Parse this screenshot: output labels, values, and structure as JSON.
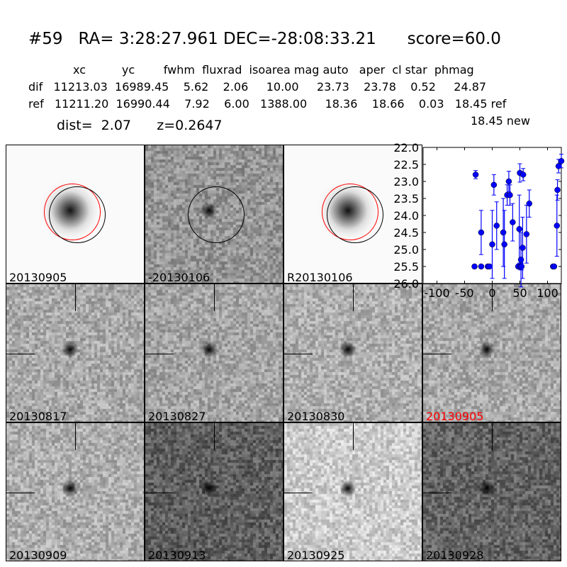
{
  "title": "#59   RA= 3:28:27.961 DEC=-28:08:33.21      score=60.0",
  "table": {
    "header": "xc          yc        fwhm  fluxrad  isoarea mag auto   aper  cl star  phmag",
    "dif": "dif   11213.03  16989.45    5.62    2.06     10.00     23.73    23.78    0.52     24.87",
    "ref": "ref   11211.20  16990.44    7.92    6.00   1388.00     18.36    18.66    0.03   18.45 ref",
    "new": "18.45 new",
    "dist": "dist=  2.07      z=0.2647"
  },
  "stamps": [
    {
      "label": "20130905",
      "kind": "galaxy",
      "circles": true
    },
    {
      "label": "-20130106",
      "kind": "diff",
      "circles": "black"
    },
    {
      "label": "R20130106",
      "kind": "galaxy",
      "circles": true
    },
    {
      "label": "20130817",
      "kind": "diff",
      "cross": true
    },
    {
      "label": "20130827",
      "kind": "diff",
      "cross": true
    },
    {
      "label": "20130830",
      "kind": "diff",
      "cross": true
    },
    {
      "label": "20130905",
      "kind": "diff",
      "cross": true,
      "color": "#ff0000"
    },
    {
      "label": "20130909",
      "kind": "diff",
      "cross": true
    },
    {
      "label": "20130913",
      "kind": "diff",
      "cross": true
    },
    {
      "label": "20130925",
      "kind": "diff",
      "cross": true
    },
    {
      "label": "20130928",
      "kind": "diff",
      "cross": true
    }
  ],
  "chart_data": {
    "type": "scatter",
    "xlim": [
      -125,
      125
    ],
    "ylim": [
      26.0,
      22.0
    ],
    "y_inverted": true,
    "xticks": [
      "-100",
      "-50",
      "0",
      "50",
      "100"
    ],
    "yticks": [
      "22.0",
      "22.5",
      "23.0",
      "23.5",
      "24.0",
      "24.5",
      "25.0",
      "25.5",
      "26.0"
    ],
    "color": "#0000ff",
    "points": [
      {
        "x": -32,
        "y": 25.5,
        "err": 0.05
      },
      {
        "x": -30,
        "y": 22.8,
        "err": 0.12
      },
      {
        "x": -20,
        "y": 25.5,
        "err": 0.05
      },
      {
        "x": -20,
        "y": 24.5,
        "err": 0.65
      },
      {
        "x": -8,
        "y": 25.5,
        "err": 0.05
      },
      {
        "x": -5,
        "y": 25.5,
        "err": 0.05
      },
      {
        "x": 0,
        "y": 24.85,
        "err": 1.0
      },
      {
        "x": 3,
        "y": 23.1,
        "err": 0.3
      },
      {
        "x": 8,
        "y": 24.3,
        "err": 0.7
      },
      {
        "x": 20,
        "y": 24.5,
        "err": 1.0
      },
      {
        "x": 22,
        "y": 24.85,
        "err": 1.0
      },
      {
        "x": 27,
        "y": 23.4,
        "err": 0.3
      },
      {
        "x": 30,
        "y": 23.0,
        "err": 0.3
      },
      {
        "x": 32,
        "y": 23.4,
        "err": 0.3
      },
      {
        "x": 37,
        "y": 24.2,
        "err": 0.55
      },
      {
        "x": 47,
        "y": 25.5,
        "err": 0.05
      },
      {
        "x": 49,
        "y": 24.4,
        "err": 1.0
      },
      {
        "x": 50,
        "y": 22.75,
        "err": 0.27
      },
      {
        "x": 51,
        "y": 25.5,
        "err": 0.1
      },
      {
        "x": 52,
        "y": 25.3,
        "err": 0.8
      },
      {
        "x": 53,
        "y": 25.5,
        "err": 0.1
      },
      {
        "x": 55,
        "y": 24.95,
        "err": 0.9
      },
      {
        "x": 56,
        "y": 22.8,
        "err": 0.18
      },
      {
        "x": 62,
        "y": 24.55,
        "err": 0.85
      },
      {
        "x": 67,
        "y": 23.65,
        "err": 0.4
      },
      {
        "x": 110,
        "y": 25.5,
        "err": 0.05
      },
      {
        "x": 112,
        "y": 25.5,
        "err": 0.05
      },
      {
        "x": 117,
        "y": 24.3,
        "err": 0.9
      },
      {
        "x": 118,
        "y": 23.25,
        "err": 0.3
      },
      {
        "x": 120,
        "y": 22.55,
        "err": 0.2
      },
      {
        "x": 125,
        "y": 22.4,
        "err": 0.2
      }
    ]
  }
}
